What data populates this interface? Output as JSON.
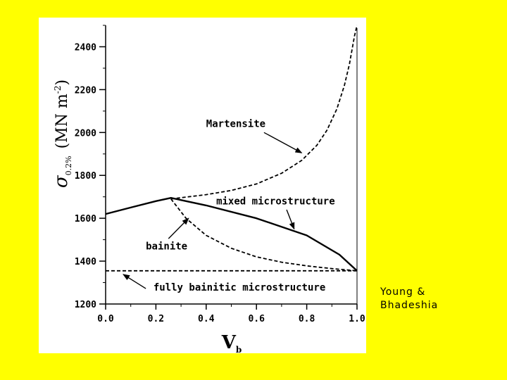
{
  "chart_data": {
    "type": "line",
    "xlabel": "V",
    "xlabel_sub": "b",
    "ylabel": "(MN m",
    "ylabel_sup": "-2",
    "ylabel_close": ")",
    "ylabel_symbol": "σ",
    "ylabel_symbol_sub": "0.2%",
    "xlim": [
      0.0,
      1.0
    ],
    "ylim": [
      1200,
      2500
    ],
    "x_ticks": [
      "0.0",
      "0.2",
      "0.4",
      "0.6",
      "0.8",
      "1.0"
    ],
    "y_ticks": [
      "1200",
      "1400",
      "1600",
      "1800",
      "2000",
      "2200",
      "2400"
    ],
    "grid": false,
    "series": [
      {
        "name": "Martensite",
        "style": "dashed",
        "x": [
          0.26,
          0.4,
          0.5,
          0.6,
          0.7,
          0.78,
          0.84,
          0.88,
          0.92,
          0.95,
          0.97,
          0.99,
          1.0
        ],
        "y": [
          1690,
          1710,
          1730,
          1760,
          1810,
          1870,
          1940,
          2010,
          2110,
          2220,
          2320,
          2450,
          2500
        ]
      },
      {
        "name": "mixed microstructure",
        "style": "solid",
        "x": [
          0.0,
          0.1,
          0.2,
          0.26,
          0.4,
          0.6,
          0.8,
          0.93,
          1.0
        ],
        "y": [
          1620,
          1650,
          1680,
          1695,
          1660,
          1600,
          1520,
          1430,
          1355
        ]
      },
      {
        "name": "bainite",
        "style": "dashed",
        "x": [
          0.26,
          0.32,
          0.4,
          0.5,
          0.6,
          0.7,
          0.8,
          0.9,
          1.0
        ],
        "y": [
          1690,
          1600,
          1520,
          1460,
          1420,
          1395,
          1378,
          1365,
          1355
        ]
      },
      {
        "name": "fully bainitic microstructure",
        "style": "dashed",
        "x": [
          0.0,
          1.0
        ],
        "y": [
          1355,
          1355
        ]
      }
    ],
    "annotations": [
      {
        "text": "Martensite"
      },
      {
        "text": "mixed microstructure"
      },
      {
        "text": "bainite"
      },
      {
        "text": "fully bainitic microstructure"
      }
    ]
  },
  "credit": {
    "text": "Young &\nBhadeshia"
  }
}
